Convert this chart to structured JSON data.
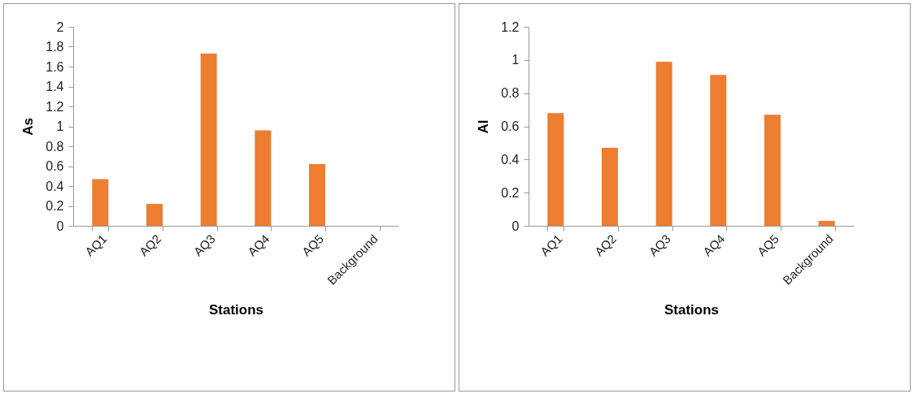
{
  "chart_data": [
    {
      "type": "bar",
      "xlabel": "Stations",
      "ylabel": "As",
      "categories": [
        "AQ1",
        "AQ2",
        "AQ3",
        "AQ4",
        "AQ5",
        "Background"
      ],
      "values": [
        0.47,
        0.22,
        1.73,
        0.96,
        0.62,
        null
      ],
      "color": "#ed7d31",
      "ylim": [
        0,
        2
      ],
      "yticks": [
        0,
        0.2,
        0.4,
        0.6,
        0.8,
        1,
        1.2,
        1.4,
        1.6,
        1.8,
        2
      ]
    },
    {
      "type": "bar",
      "xlabel": "Stations",
      "ylabel": "Al",
      "categories": [
        "AQ1",
        "AQ2",
        "AQ3",
        "AQ4",
        "AQ5",
        "Background"
      ],
      "values": [
        0.68,
        0.47,
        0.99,
        0.91,
        0.67,
        0.03
      ],
      "color": "#ed7d31",
      "ylim": [
        0,
        1.2
      ],
      "yticks": [
        0,
        0.2,
        0.4,
        0.6,
        0.8,
        1,
        1.2
      ]
    }
  ]
}
